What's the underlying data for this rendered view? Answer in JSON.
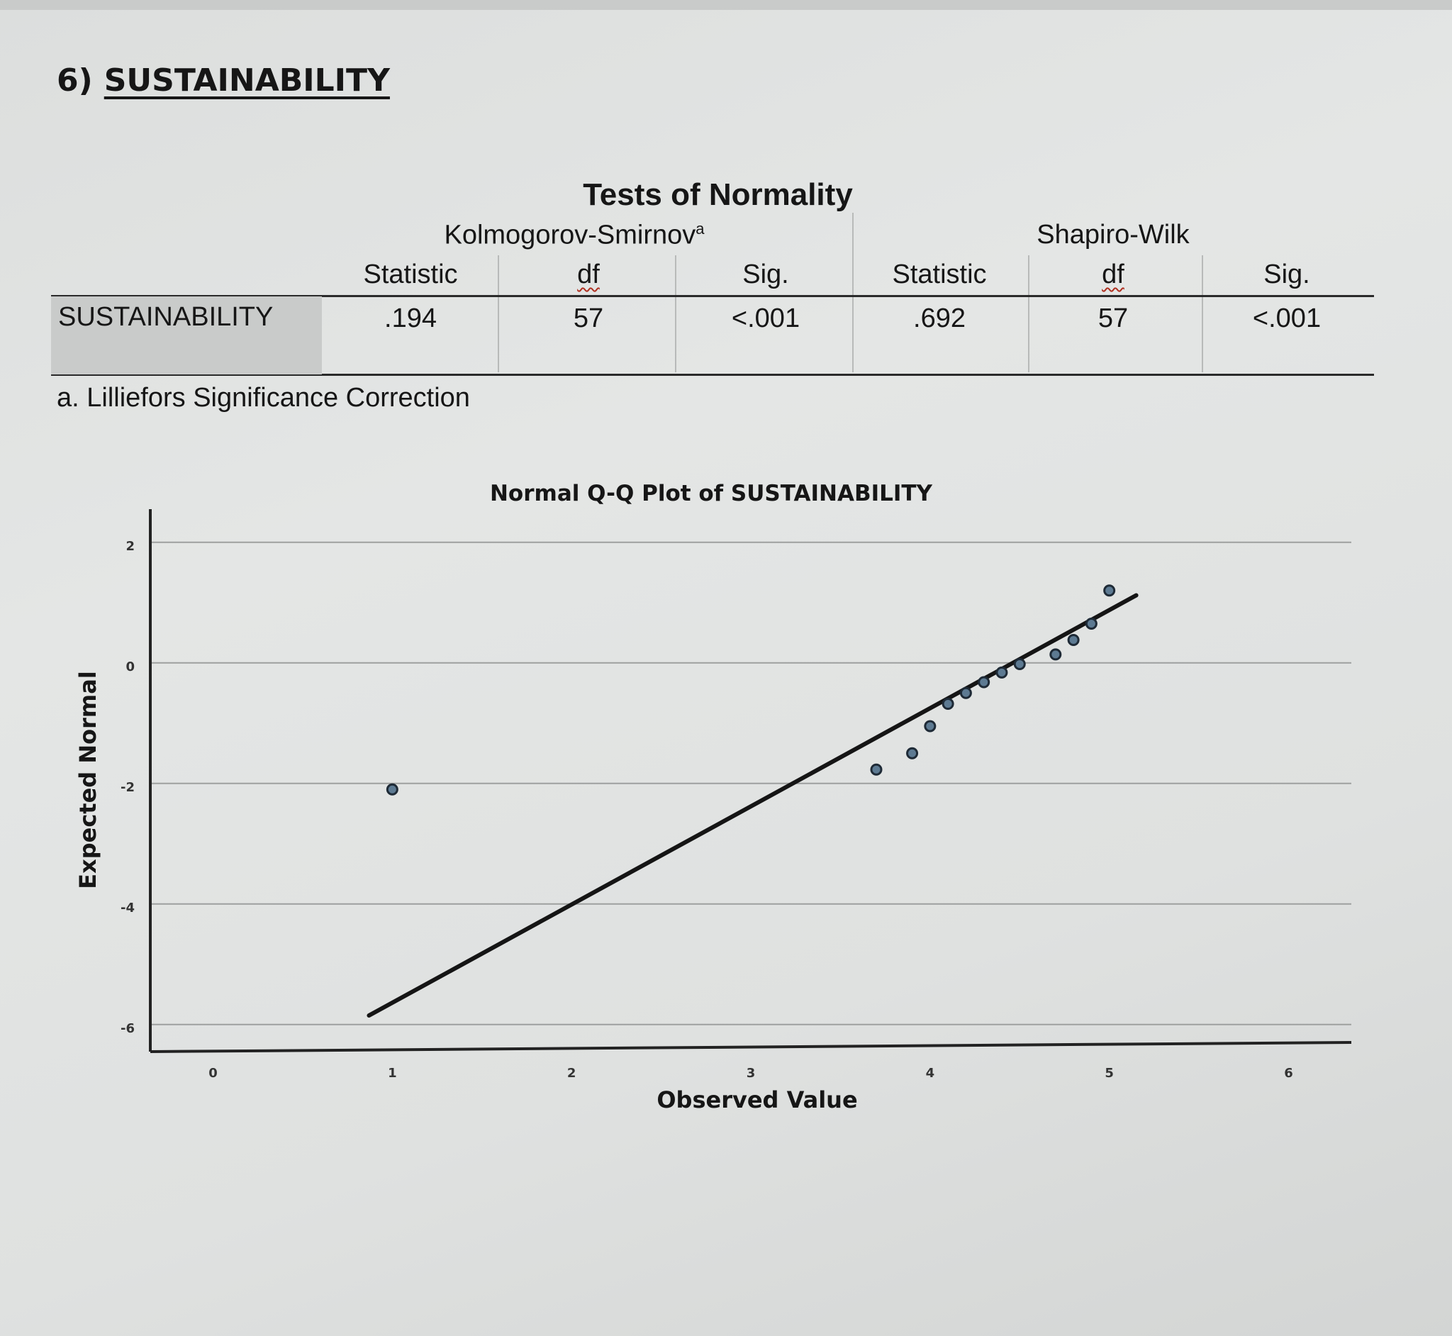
{
  "heading": {
    "number": "6)",
    "title": "SUSTAINABILITY"
  },
  "table": {
    "title": "Tests of Normality",
    "groups": [
      {
        "label": "Kolmogorov-Smirnov",
        "superscript": "a"
      },
      {
        "label": "Shapiro-Wilk"
      }
    ],
    "columns": [
      "Statistic",
      "df",
      "Sig.",
      "Statistic",
      "df",
      "Sig."
    ],
    "row": {
      "label": "SUSTAINABILITY",
      "values": [
        ".194",
        "57",
        "<.001",
        ".692",
        "57",
        "<.001"
      ]
    },
    "footnote": "a. Lilliefors Significance Correction"
  },
  "chart_data": {
    "type": "scatter",
    "title": "Normal Q-Q Plot of SUSTAINABILITY",
    "xlabel": "Observed Value",
    "ylabel": "Expected Normal",
    "xlim": [
      -0.35,
      6.35
    ],
    "ylim": [
      -6.45,
      2.55
    ],
    "x_ticks": [
      0,
      1,
      2,
      3,
      4,
      5,
      6
    ],
    "y_ticks": [
      -6,
      -4,
      -2,
      0,
      2
    ],
    "grid": "horizontal",
    "points": [
      {
        "x": 1.0,
        "y": -2.1
      },
      {
        "x": 3.7,
        "y": -1.77
      },
      {
        "x": 3.9,
        "y": -1.5
      },
      {
        "x": 4.0,
        "y": -1.05
      },
      {
        "x": 4.1,
        "y": -0.68
      },
      {
        "x": 4.2,
        "y": -0.5
      },
      {
        "x": 4.3,
        "y": -0.32
      },
      {
        "x": 4.4,
        "y": -0.16
      },
      {
        "x": 4.5,
        "y": -0.02
      },
      {
        "x": 4.7,
        "y": 0.14
      },
      {
        "x": 4.8,
        "y": 0.38
      },
      {
        "x": 4.9,
        "y": 0.65
      },
      {
        "x": 5.0,
        "y": 1.2
      }
    ],
    "reference_line": {
      "x": [
        0.87,
        5.15
      ],
      "y": [
        -5.85,
        1.12
      ]
    },
    "colors": {
      "point_fill": "#5d7a92",
      "point_stroke": "#1e2a36",
      "line": "#151515",
      "grid": "#9ea09f"
    }
  }
}
